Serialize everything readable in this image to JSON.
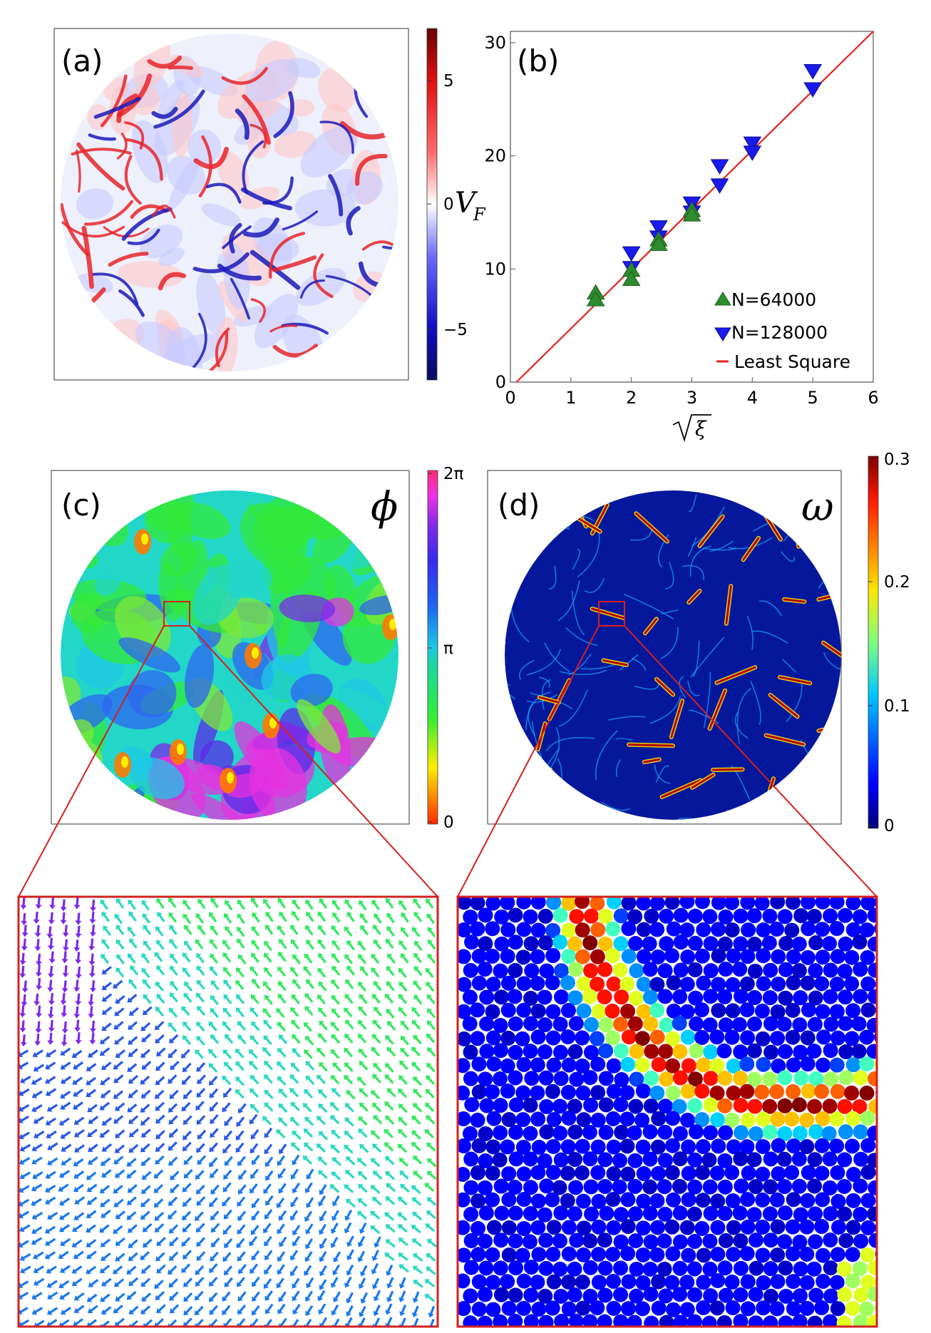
{
  "panel_a": {
    "label": "(a)",
    "colorbar": {
      "ticks": [
        "5",
        "0",
        "−5"
      ],
      "title": "V",
      "title_sub": "F",
      "range": [
        -7,
        7
      ]
    }
  },
  "panel_b": {
    "label": "(b)",
    "legend": {
      "placement": "bottom-right",
      "items": [
        "N=64000",
        "N=128000",
        "Least Square"
      ]
    }
  },
  "panel_c": {
    "label": "(c)",
    "symbol": "ϕ",
    "colorbar": {
      "ticks": [
        "2π",
        "π",
        "0"
      ]
    }
  },
  "panel_d": {
    "label": "(d)",
    "symbol": "ω",
    "colorbar": {
      "ticks": [
        "0.3",
        "0.2",
        "0.1",
        "0"
      ]
    }
  },
  "colors": {
    "red": "#e8141a",
    "blue": "#1a1aee",
    "green": "#2e8b2e",
    "fit": "#e52020",
    "zoom_frame": "#d42020"
  },
  "chart_data": [
    {
      "type": "scatter",
      "xlabel": "√ξ",
      "ylabel": "",
      "xlim": [
        0,
        6
      ],
      "ylim": [
        0,
        31
      ],
      "xticks": [
        0,
        1,
        2,
        3,
        4,
        5,
        6
      ],
      "yticks": [
        0,
        10,
        20,
        30
      ],
      "grid": false,
      "series": [
        {
          "name": "N=64000",
          "marker": "triangle-up",
          "color": "#2e8b2e",
          "x": [
            1.41,
            1.41,
            2.0,
            2.0,
            2.45,
            2.45,
            3.0,
            3.0
          ],
          "y": [
            7.9,
            7.3,
            9.9,
            9.1,
            12.6,
            12.2,
            15.2,
            14.8
          ]
        },
        {
          "name": "N=128000",
          "marker": "triangle-down",
          "color": "#1a1aee",
          "x": [
            2.0,
            2.0,
            2.45,
            2.45,
            3.0,
            3.0,
            3.46,
            3.46,
            4.0,
            4.0,
            5.0,
            5.0
          ],
          "y": [
            11.4,
            10.1,
            13.7,
            12.8,
            15.8,
            15.0,
            19.1,
            17.4,
            21.1,
            20.3,
            27.5,
            25.9
          ]
        },
        {
          "name": "Least Square",
          "type": "line",
          "color": "#e52020",
          "x": [
            0.1,
            6.0
          ],
          "y": [
            0.0,
            31.0
          ]
        }
      ]
    },
    {
      "type": "heatmap",
      "panel": "(a)",
      "colorbar_ticks": [
        -5,
        0,
        5
      ],
      "range": [
        -7,
        7
      ]
    },
    {
      "type": "heatmap",
      "panel": "(c)",
      "colorbar_ticks": [
        "0",
        "π",
        "2π"
      ],
      "range": [
        0,
        6.2832
      ]
    },
    {
      "type": "heatmap",
      "panel": "(d)",
      "colorbar_ticks": [
        0,
        0.1,
        0.2,
        0.3
      ],
      "range": [
        0,
        0.3
      ]
    }
  ]
}
